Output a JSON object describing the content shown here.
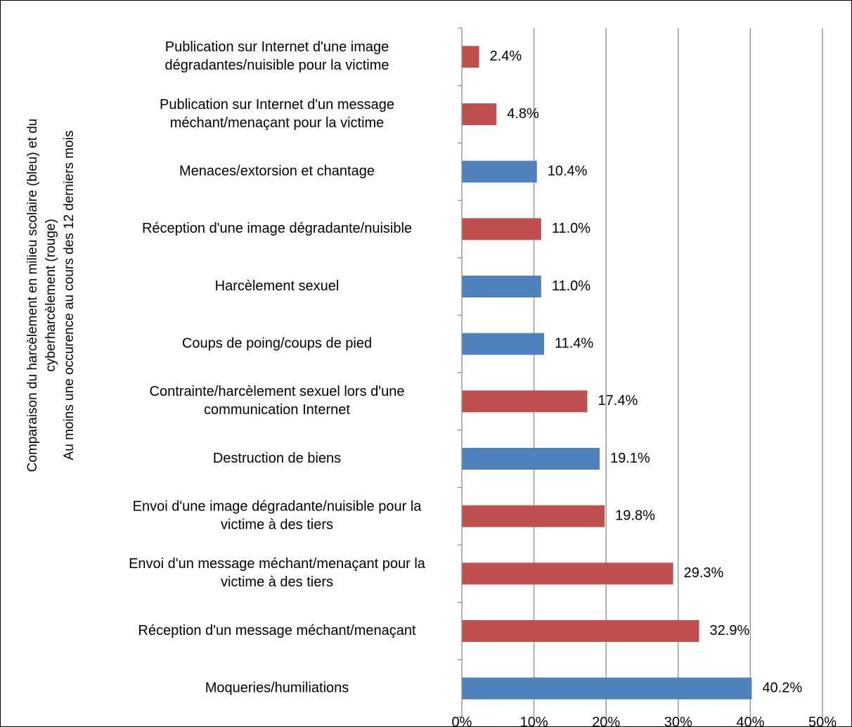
{
  "chart_data": {
    "type": "bar",
    "orientation": "horizontal",
    "ylabel": [
      "Comparaison du harcèlement en milieu scolaire (bleu) et du",
      "cyberharcèlement (rouge)",
      "Au moins une occurence au cours des 12 derniers mois"
    ],
    "xlim": [
      0,
      50
    ],
    "xticks": [
      "0%",
      "10%",
      "20%",
      "30%",
      "40%",
      "50%"
    ],
    "grid": "vertical",
    "colors": {
      "school": "#4f81bd",
      "cyber": "#c0504d"
    },
    "bars": [
      {
        "label": [
          "Publication sur Internet d'une image",
          "dégradantes/nuisible pour la victime"
        ],
        "value": 2.4,
        "value_label": "2.4%",
        "group": "cyber"
      },
      {
        "label": [
          "Publication sur Internet d'un message",
          "méchant/menaçant pour la victime"
        ],
        "value": 4.8,
        "value_label": "4.8%",
        "group": "cyber"
      },
      {
        "label": [
          "Menaces/extorsion et chantage"
        ],
        "value": 10.4,
        "value_label": "10.4%",
        "group": "school"
      },
      {
        "label": [
          "Réception d'une image dégradante/nuisible"
        ],
        "value": 11.0,
        "value_label": "11.0%",
        "group": "cyber"
      },
      {
        "label": [
          "Harcèlement sexuel"
        ],
        "value": 11.0,
        "value_label": "11.0%",
        "group": "school"
      },
      {
        "label": [
          "Coups de poing/coups de pied"
        ],
        "value": 11.4,
        "value_label": "11.4%",
        "group": "school"
      },
      {
        "label": [
          "Contrainte/harcèlement sexuel lors d'une",
          "communication Internet"
        ],
        "value": 17.4,
        "value_label": "17.4%",
        "group": "cyber"
      },
      {
        "label": [
          "Destruction de biens"
        ],
        "value": 19.1,
        "value_label": "19.1%",
        "group": "school"
      },
      {
        "label": [
          "Envoi d'une image dégradante/nuisible pour la",
          "victime à des tiers"
        ],
        "value": 19.8,
        "value_label": "19.8%",
        "group": "cyber"
      },
      {
        "label": [
          "Envoi d'un message méchant/menaçant pour la",
          "victime à des tiers"
        ],
        "value": 29.3,
        "value_label": "29.3%",
        "group": "cyber"
      },
      {
        "label": [
          "Réception d'un message méchant/menaçant"
        ],
        "value": 32.9,
        "value_label": "32.9%",
        "group": "cyber"
      },
      {
        "label": [
          "Moqueries/humiliations"
        ],
        "value": 40.2,
        "value_label": "40.2%",
        "group": "school"
      }
    ]
  }
}
